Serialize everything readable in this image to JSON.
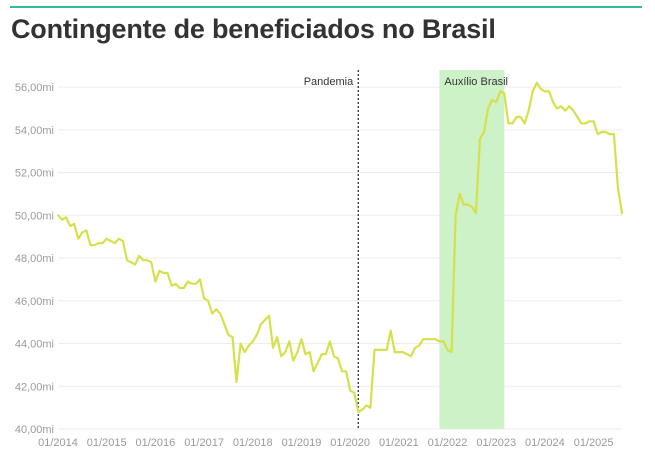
{
  "title": "Contingente de beneficiados no Brasil",
  "colors": {
    "accent_rule": "#33b8a3",
    "series": "#d6e04b",
    "highlight_band": "#cdf2c8",
    "grid": "#ececec",
    "tick_text": "#9a9a9a",
    "title_text": "#333333"
  },
  "chart_data": {
    "type": "line",
    "title": "Contingente de beneficiados no Brasil",
    "xlabel": "",
    "ylabel": "",
    "ylim": [
      40,
      56.8
    ],
    "xlim": [
      "2014-01",
      "2025-08"
    ],
    "grid": true,
    "legend": "none",
    "y_ticks": [
      {
        "value": 40,
        "label": "40,00mi"
      },
      {
        "value": 42,
        "label": "42,00mi"
      },
      {
        "value": 44,
        "label": "44,00mi"
      },
      {
        "value": 46,
        "label": "46,00mi"
      },
      {
        "value": 48,
        "label": "48,00mi"
      },
      {
        "value": 50,
        "label": "50,00mi"
      },
      {
        "value": 52,
        "label": "52,00mi"
      },
      {
        "value": 54,
        "label": "54,00mi"
      },
      {
        "value": 56,
        "label": "56,00mi"
      }
    ],
    "x_ticks": [
      {
        "value": "2014-01",
        "label": "01/2014"
      },
      {
        "value": "2015-01",
        "label": "01/2015"
      },
      {
        "value": "2016-01",
        "label": "01/2016"
      },
      {
        "value": "2017-01",
        "label": "01/2017"
      },
      {
        "value": "2018-01",
        "label": "01/2018"
      },
      {
        "value": "2019-01",
        "label": "01/2019"
      },
      {
        "value": "2020-01",
        "label": "01/2020"
      },
      {
        "value": "2021-01",
        "label": "01/2021"
      },
      {
        "value": "2022-01",
        "label": "01/2022"
      },
      {
        "value": "2023-01",
        "label": "01/2023"
      },
      {
        "value": "2024-01",
        "label": "01/2024"
      },
      {
        "value": "2025-01",
        "label": "01/2025"
      }
    ],
    "annotations": [
      {
        "type": "vline",
        "x": "2020-03",
        "label": "Pandemia"
      },
      {
        "type": "band",
        "x_start": "2021-11",
        "x_end": "2023-03",
        "label": "Auxílio Brasil"
      }
    ],
    "x": [
      "2014-01",
      "2014-02",
      "2014-03",
      "2014-04",
      "2014-05",
      "2014-06",
      "2014-07",
      "2014-08",
      "2014-09",
      "2014-10",
      "2014-11",
      "2014-12",
      "2015-01",
      "2015-02",
      "2015-03",
      "2015-04",
      "2015-05",
      "2015-06",
      "2015-07",
      "2015-08",
      "2015-09",
      "2015-10",
      "2015-11",
      "2015-12",
      "2016-01",
      "2016-02",
      "2016-03",
      "2016-04",
      "2016-05",
      "2016-06",
      "2016-07",
      "2016-08",
      "2016-09",
      "2016-10",
      "2016-11",
      "2016-12",
      "2017-01",
      "2017-02",
      "2017-03",
      "2017-04",
      "2017-05",
      "2017-06",
      "2017-07",
      "2017-08",
      "2017-09",
      "2017-10",
      "2017-11",
      "2017-12",
      "2018-01",
      "2018-02",
      "2018-03",
      "2018-04",
      "2018-05",
      "2018-06",
      "2018-07",
      "2018-08",
      "2018-09",
      "2018-10",
      "2018-11",
      "2018-12",
      "2019-01",
      "2019-02",
      "2019-03",
      "2019-04",
      "2019-05",
      "2019-06",
      "2019-07",
      "2019-08",
      "2019-09",
      "2019-10",
      "2019-11",
      "2019-12",
      "2020-01",
      "2020-02",
      "2020-03",
      "2020-04",
      "2020-05",
      "2020-06",
      "2020-07",
      "2020-08",
      "2020-09",
      "2020-10",
      "2020-11",
      "2020-12",
      "2021-01",
      "2021-02",
      "2021-03",
      "2021-04",
      "2021-05",
      "2021-06",
      "2021-07",
      "2021-08",
      "2021-09",
      "2021-10",
      "2021-11",
      "2021-12",
      "2022-01",
      "2022-02",
      "2022-03",
      "2022-04",
      "2022-05",
      "2022-06",
      "2022-07",
      "2022-08",
      "2022-09",
      "2022-10",
      "2022-11",
      "2022-12",
      "2023-01",
      "2023-02",
      "2023-03",
      "2023-04",
      "2023-05",
      "2023-06",
      "2023-07",
      "2023-08",
      "2023-09",
      "2023-10",
      "2023-11",
      "2023-12",
      "2024-01",
      "2024-02",
      "2024-03",
      "2024-04",
      "2024-05",
      "2024-06",
      "2024-07",
      "2024-08",
      "2024-09",
      "2024-10",
      "2024-11",
      "2024-12",
      "2025-01",
      "2025-02",
      "2025-03",
      "2025-04",
      "2025-05",
      "2025-06",
      "2025-07",
      "2025-08"
    ],
    "series": [
      {
        "values": [
          50.0,
          49.8,
          49.9,
          49.5,
          49.6,
          48.9,
          49.2,
          49.3,
          48.6,
          48.6,
          48.7,
          48.7,
          48.9,
          48.8,
          48.7,
          48.9,
          48.8,
          47.9,
          47.8,
          47.7,
          48.1,
          47.9,
          47.9,
          47.8,
          46.9,
          47.4,
          47.3,
          47.3,
          46.7,
          46.8,
          46.6,
          46.6,
          46.9,
          46.8,
          46.8,
          47.0,
          46.1,
          46.0,
          45.4,
          45.6,
          45.4,
          44.9,
          44.4,
          44.3,
          42.2,
          44.0,
          43.6,
          43.9,
          44.1,
          44.4,
          44.9,
          45.1,
          45.3,
          43.8,
          44.3,
          43.4,
          43.6,
          44.1,
          43.2,
          43.6,
          44.2,
          43.5,
          43.6,
          42.7,
          43.1,
          43.5,
          43.5,
          44.1,
          43.4,
          43.3,
          42.7,
          42.7,
          41.8,
          41.7,
          40.8,
          40.9,
          41.1,
          41.0,
          43.7,
          43.7,
          43.7,
          43.7,
          44.6,
          43.6,
          43.6,
          43.6,
          43.5,
          43.4,
          43.8,
          43.9,
          44.2,
          44.2,
          44.2,
          44.2,
          44.1,
          44.1,
          43.7,
          43.6,
          50.0,
          51.0,
          50.5,
          50.5,
          50.4,
          50.1,
          53.6,
          53.9,
          55.0,
          55.4,
          55.3,
          55.8,
          55.7,
          54.3,
          54.3,
          54.6,
          54.6,
          54.3,
          54.9,
          55.8,
          56.2,
          55.9,
          55.8,
          55.8,
          55.3,
          55.0,
          55.1,
          54.9,
          55.1,
          54.9,
          54.6,
          54.3,
          54.3,
          54.4,
          54.4,
          53.8,
          53.9,
          53.9,
          53.8,
          53.8,
          51.3,
          50.1
        ]
      }
    ]
  }
}
